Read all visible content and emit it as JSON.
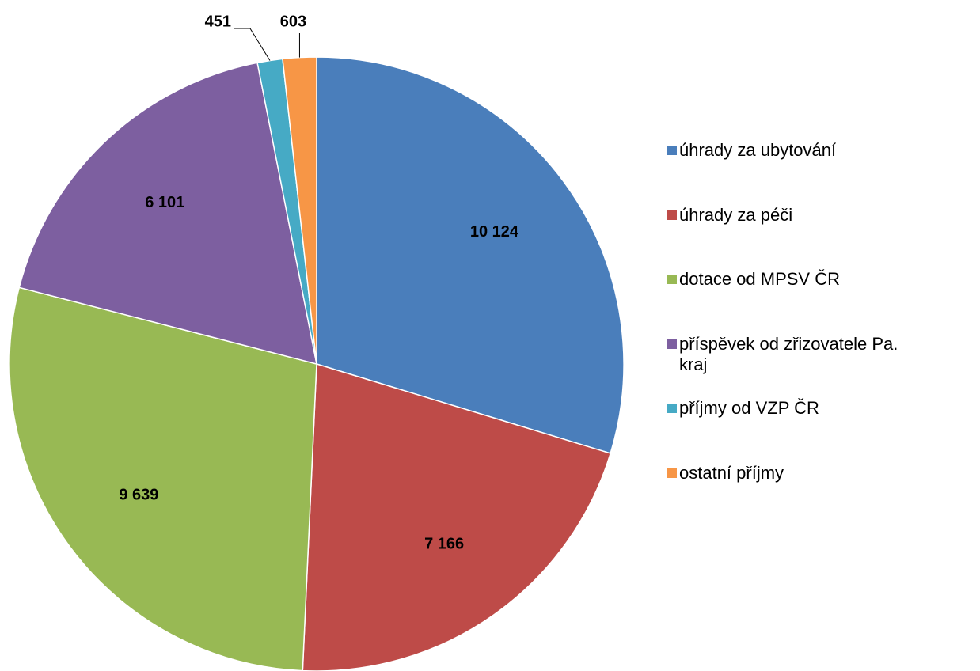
{
  "chart_data": {
    "type": "pie",
    "categories": [
      "úhrady za ubytování",
      "úhrady za péči",
      "dotace od MPSV ČR",
      "příspěvek od zřizovatele Pa. kraj",
      "příjmy od VZP ČR",
      "ostatní příjmy"
    ],
    "values": [
      10124,
      7166,
      9639,
      6101,
      451,
      603
    ],
    "value_labels": [
      "10 124",
      "7 166",
      "9 639",
      "6 101",
      "451",
      "603"
    ],
    "colors": [
      "#4a7ebb",
      "#be4b48",
      "#98b954",
      "#7d5fa0",
      "#46aac5",
      "#f79646"
    ],
    "legend": "right"
  }
}
